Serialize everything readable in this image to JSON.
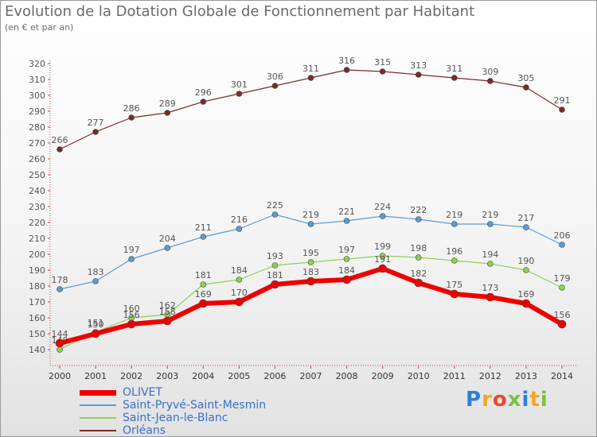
{
  "header": {
    "title": "Evolution de la Dotation Globale de Fonctionnement par Habitant",
    "subtitle": "(en € et par an)"
  },
  "logo": {
    "text": "Proxiti",
    "colors": [
      "#2e7fd6",
      "#f5a623",
      "#e84a2a",
      "#7cc242",
      "#2e7fd6",
      "#f5a623",
      "#7cc242"
    ]
  },
  "chart_data": {
    "type": "line",
    "title": "Evolution de la Dotation Globale de Fonctionnement par Habitant",
    "subtitle": "(en € et par an)",
    "x": [
      "2000",
      "2001",
      "2002",
      "2003",
      "2004",
      "2005",
      "2006",
      "2007",
      "2008",
      "2009",
      "2010",
      "2011",
      "2012",
      "2013",
      "2014"
    ],
    "ylim": [
      135,
      322
    ],
    "yticks": [
      140,
      150,
      160,
      170,
      180,
      190,
      200,
      210,
      220,
      230,
      240,
      250,
      260,
      270,
      280,
      290,
      300,
      310,
      320
    ],
    "grid": false,
    "legend": "bottom-left",
    "series": [
      {
        "name": "Orléans",
        "color": "#7b2a2a",
        "width": 1.2,
        "values": [
          266,
          277,
          286,
          289,
          296,
          301,
          306,
          311,
          316,
          315,
          313,
          311,
          309,
          305,
          291
        ]
      },
      {
        "name": "Saint-Pryvé-Saint-Mesmin",
        "color": "#5b9bd5",
        "width": 1.2,
        "values": [
          178,
          183,
          197,
          204,
          211,
          216,
          225,
          219,
          221,
          224,
          222,
          219,
          219,
          217,
          206
        ]
      },
      {
        "name": "Saint-Jean-le-Blanc",
        "color": "#8fd14f",
        "width": 1.2,
        "values": [
          140,
          151,
          160,
          162,
          181,
          184,
          193,
          195,
          197,
          199,
          198,
          196,
          194,
          190,
          179
        ]
      },
      {
        "name": "OLIVET",
        "color": "#ee0000",
        "width": 6,
        "values": [
          144,
          150,
          156,
          158,
          169,
          170,
          181,
          183,
          184,
          191,
          182,
          175,
          173,
          169,
          156
        ]
      }
    ],
    "legend_order": [
      "OLIVET",
      "Saint-Pryvé-Saint-Mesmin",
      "Saint-Jean-le-Blanc",
      "Orléans"
    ]
  },
  "legend_colors": {
    "OLIVET": "#3a6fc9",
    "Saint-Pryvé-Saint-Mesmin": "#3a6fc9",
    "Saint-Jean-le-Blanc": "#3a6fc9",
    "Orléans": "#3a6fc9"
  }
}
